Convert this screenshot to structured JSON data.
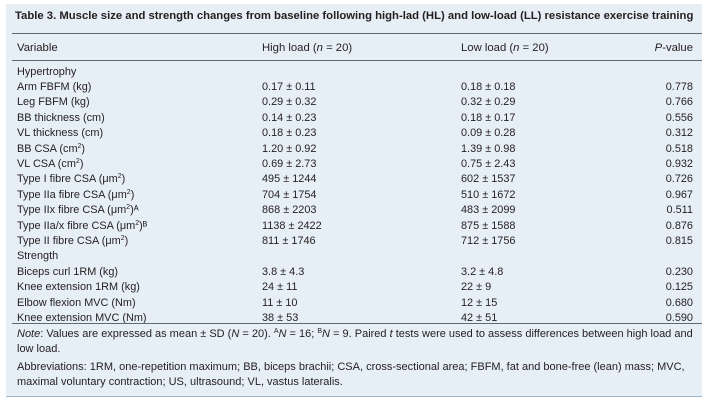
{
  "table": {
    "title": "Table 3.  Muscle size and strength changes from baseline following high-lad (HL) and low-load (LL) resistance exercise training",
    "headers": {
      "variable": "Variable",
      "high_prefix": "High load (",
      "high_n": "n",
      "high_suffix": " = 20)",
      "low_prefix": "Low load (",
      "low_n": "n",
      "low_suffix": " = 20)",
      "p_value": "P",
      "p_suffix": "-value"
    },
    "sections": [
      {
        "name": "Hypertrophy",
        "rows": [
          {
            "label": "Arm FBFM (kg)",
            "label_sup": "",
            "label_end": "",
            "high": "0.17 ± 0.11",
            "low": "0.18 ± 0.18",
            "p": "0.778"
          },
          {
            "label": "Leg FBFM (kg)",
            "label_sup": "",
            "label_end": "",
            "high": "0.29 ± 0.32",
            "low": "0.32 ± 0.29",
            "p": "0.766"
          },
          {
            "label": "BB thickness (cm)",
            "label_sup": "",
            "label_end": "",
            "high": "0.14 ± 0.23",
            "low": "0.18 ± 0.17",
            "p": "0.556"
          },
          {
            "label": "VL thickness (cm)",
            "label_sup": "",
            "label_end": "",
            "high": "0.18 ± 0.23",
            "low": "0.09 ± 0.28",
            "p": "0.312"
          },
          {
            "label": "BB CSA (cm",
            "label_sup": "2",
            "label_end": ")",
            "high": "1.20 ± 0.92",
            "low": "1.39 ± 0.98",
            "p": "0.518"
          },
          {
            "label": "VL CSA (cm",
            "label_sup": "2",
            "label_end": ")",
            "high": "0.69 ± 2.73",
            "low": "0.75 ± 2.43",
            "p": "0.932"
          },
          {
            "label": "Type I fibre CSA (μm",
            "label_sup": "2",
            "label_end": ")",
            "high": "495 ± 1244",
            "low": "602 ± 1537",
            "p": "0.726"
          },
          {
            "label": "Type IIa fibre CSA (μm",
            "label_sup": "2",
            "label_end": ")",
            "high": "704 ± 1754",
            "low": "510 ± 1672",
            "p": "0.967"
          },
          {
            "label": "Type IIx fibre CSA (μm",
            "label_sup": "2",
            "label_end": ")ᴬ",
            "high": "868 ± 2203",
            "low": "483 ± 2099",
            "p": "0.511"
          },
          {
            "label": "Type IIa/x fibre CSA (μm",
            "label_sup": "2",
            "label_end": ")ᴮ",
            "high": "1138 ± 2422",
            "low": "875 ± 1588",
            "p": "0.876"
          },
          {
            "label": "Type II fibre CSA (μm",
            "label_sup": "2",
            "label_end": ")",
            "high": "811 ± 1746",
            "low": "712 ± 1756",
            "p": "0.815"
          }
        ]
      },
      {
        "name": "Strength",
        "rows": [
          {
            "label": "Biceps curl 1RM (kg)",
            "label_sup": "",
            "label_end": "",
            "high": "3.8 ± 4.3",
            "low": "3.2 ± 4.8",
            "p": "0.230"
          },
          {
            "label": "Knee extension 1RM (kg)",
            "label_sup": "",
            "label_end": "",
            "high": "24 ± 11",
            "low": "22 ± 9",
            "p": "0.125"
          },
          {
            "label": "Elbow flexion MVC (Nm)",
            "label_sup": "",
            "label_end": "",
            "high": "11 ± 10",
            "low": "12 ± 15",
            "p": "0.680"
          },
          {
            "label": "Knee extension MVC (Nm)",
            "label_sup": "",
            "label_end": "",
            "high": "38 ± 53",
            "low": "42 ± 51",
            "p": "0.590"
          }
        ]
      }
    ],
    "note": {
      "label": "Note",
      "text1": ": Values are expressed as mean ± SD (",
      "n1": "N",
      "text2": " = 20). ",
      "supA": "A",
      "n2": "N",
      "text3": " = 16; ",
      "supB": "B",
      "n3": "N",
      "text4": " = 9. Paired ",
      "t": "t",
      "text5": " tests were used to assess differences between high load and low load."
    },
    "abbreviations": "Abbreviations: 1RM, one-repetition maximum; BB, biceps brachii; CSA, cross-sectional area; FBFM, fat and bone-free (lean) mass; MVC, maximal voluntary contraction; US, ultrasound; VL, vastus lateralis."
  }
}
